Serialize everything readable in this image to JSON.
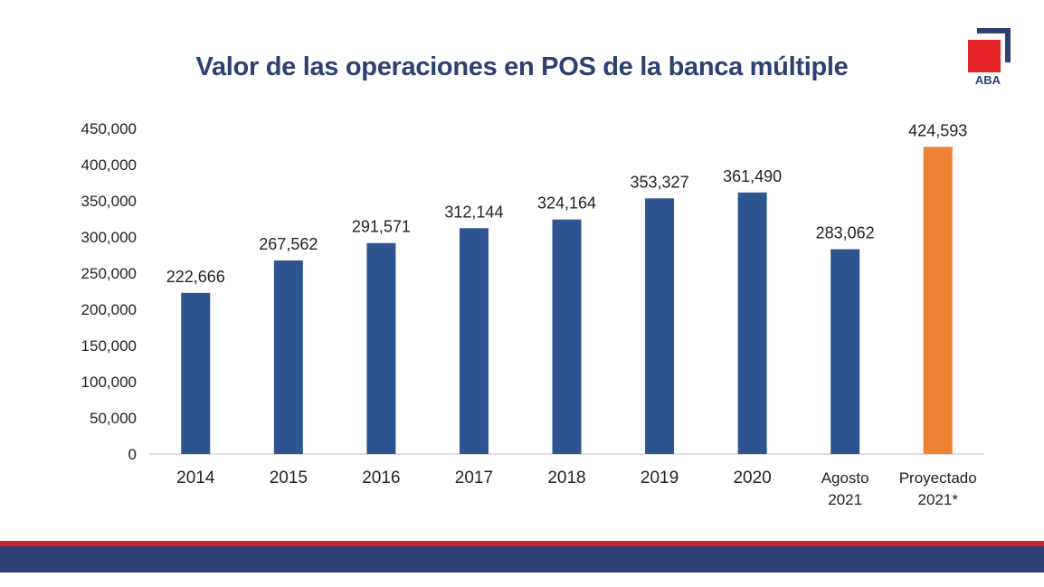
{
  "logo": {
    "text": "ABA",
    "red": "#e52526",
    "navy": "#2c4073"
  },
  "footer": {
    "red": "#c8262b",
    "blue": "#2c4073"
  },
  "chart_data": {
    "type": "bar",
    "title": "Valor de las operaciones en POS de la banca múltiple",
    "categories": [
      [
        "2014"
      ],
      [
        "2015"
      ],
      [
        "2016"
      ],
      [
        "2017"
      ],
      [
        "2018"
      ],
      [
        "2019"
      ],
      [
        "2020"
      ],
      [
        "Agosto",
        "2021"
      ],
      [
        "Proyectado",
        "2021*"
      ]
    ],
    "values": [
      222666,
      267562,
      291571,
      312144,
      324164,
      353327,
      361490,
      283062,
      424593
    ],
    "data_labels": [
      "222,666",
      "267,562",
      "291,571",
      "312,144",
      "324,164",
      "353,327",
      "361,490",
      "283,062",
      "424,593"
    ],
    "yticks": [
      "0",
      "50,000",
      "100,000",
      "150,000",
      "200,000",
      "250,000",
      "300,000",
      "350,000",
      "400,000",
      "450,000"
    ],
    "ylim": [
      0,
      450000
    ],
    "ytick_step": 50000,
    "grid": false,
    "colors": [
      "#2e5590",
      "#2e5590",
      "#2e5590",
      "#2e5590",
      "#2e5590",
      "#2e5590",
      "#2e5590",
      "#2e5590",
      "#ec8333"
    ]
  }
}
